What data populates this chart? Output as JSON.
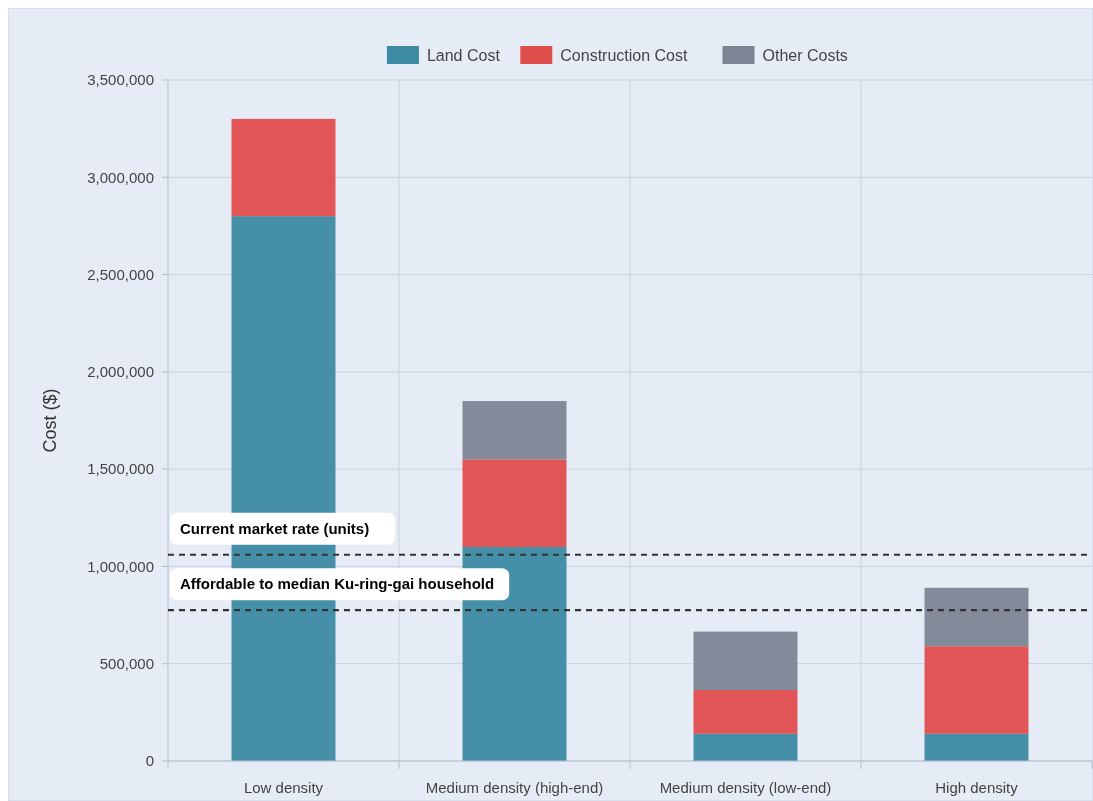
{
  "chart_data": {
    "type": "bar",
    "stacked": true,
    "ylabel": "Cost ($)",
    "categories": [
      "Low density",
      "Medium density (high-end)",
      "Medium density (low-end)",
      "High density"
    ],
    "series": [
      {
        "name": "Land Cost",
        "color": "#3d8aa3",
        "values": [
          2800000,
          1100000,
          140000,
          140000
        ]
      },
      {
        "name": "Construction Cost",
        "color": "#e04d4d",
        "values": [
          500000,
          450000,
          225000,
          450000
        ]
      },
      {
        "name": "Other Costs",
        "color": "#7d8594",
        "values": [
          0,
          300000,
          300000,
          300000
        ]
      }
    ],
    "ylim": [
      0,
      3500000
    ],
    "yticks": [
      {
        "value": 0,
        "label": "0"
      },
      {
        "value": 500000,
        "label": "500,000"
      },
      {
        "value": 1000000,
        "label": "1,000,000"
      },
      {
        "value": 1500000,
        "label": "1,500,000"
      },
      {
        "value": 2000000,
        "label": "2,000,000"
      },
      {
        "value": 2500000,
        "label": "2,500,000"
      },
      {
        "value": 3000000,
        "label": "3,000,000"
      },
      {
        "value": 3500000,
        "label": "3,500,000"
      }
    ],
    "ref_lines": [
      {
        "axis": "y",
        "value": 1060000,
        "label": "Current market rate (units)",
        "color": "#333333",
        "line_style": "dashed"
      },
      {
        "axis": "y",
        "value": 775000,
        "label": "Affordable to median Ku-ring-gai household",
        "color": "#333333",
        "line_style": "dashed"
      }
    ],
    "grid": true,
    "legend": "top"
  }
}
